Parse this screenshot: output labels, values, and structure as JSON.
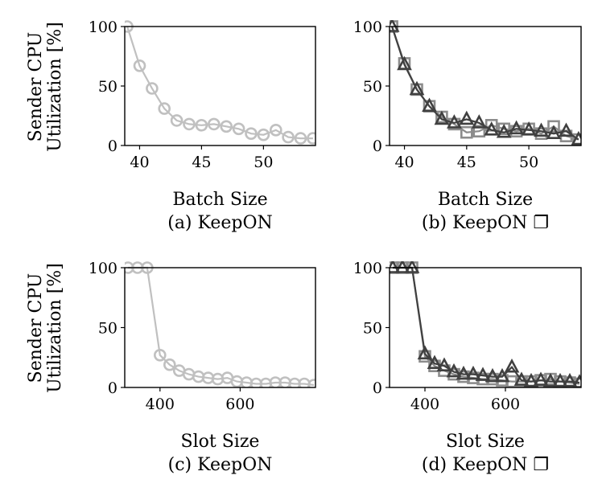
{
  "figure": {
    "ylabel_line1": "Sender CPU",
    "ylabel_line2": "Utilization [%]"
  },
  "colors": {
    "keepon": "#c0c0c0",
    "variant_square": "#8c8c8c",
    "variant_triangle": "#404040"
  },
  "chart_data": [
    {
      "type": "line",
      "caption": "(a) KeepON",
      "xlabel": "Batch Size",
      "ylabel": "Sender CPU Utilization [%]",
      "xlim": [
        38.8,
        54.2
      ],
      "ylim": [
        0,
        100
      ],
      "xticks": [
        40,
        45,
        50
      ],
      "yticks": [
        0,
        50,
        100
      ],
      "series": [
        {
          "marker": "circle",
          "color": "#c0c0c0",
          "x": [
            39,
            40,
            41,
            42,
            43,
            44,
            45,
            46,
            47,
            48,
            49,
            50,
            51,
            52,
            53,
            54
          ],
          "y": [
            100,
            67,
            48,
            31,
            21,
            18,
            17,
            18,
            16,
            14,
            10,
            9,
            13,
            7,
            6,
            6
          ]
        }
      ]
    },
    {
      "type": "line",
      "caption": "(b) KeepON ❐",
      "xlabel": "Batch Size",
      "ylabel": "Sender CPU Utilization [%]",
      "xlim": [
        38.8,
        54.2
      ],
      "ylim": [
        0,
        100
      ],
      "xticks": [
        40,
        45,
        50
      ],
      "yticks": [
        0,
        50,
        100
      ],
      "series": [
        {
          "marker": "square",
          "color": "#8c8c8c",
          "x": [
            39,
            40,
            41,
            42,
            43,
            44,
            45,
            46,
            47,
            48,
            49,
            50,
            51,
            52,
            53,
            54
          ],
          "y": [
            100,
            69,
            47,
            33,
            24,
            18,
            11,
            12,
            17,
            14,
            12,
            14,
            10,
            16,
            8,
            5
          ]
        },
        {
          "marker": "triangle",
          "color": "#404040",
          "x": [
            39,
            40,
            41,
            42,
            43,
            44,
            45,
            46,
            47,
            48,
            49,
            50,
            51,
            52,
            53,
            54
          ],
          "y": [
            100,
            68,
            47,
            33,
            22,
            19,
            22,
            19,
            13,
            11,
            14,
            13,
            12,
            10,
            12,
            5
          ]
        }
      ]
    },
    {
      "type": "line",
      "caption": "(c) KeepON",
      "xlabel": "Slot Size",
      "ylabel": "Sender CPU Utilization [%]",
      "xlim": [
        312,
        788
      ],
      "ylim": [
        0,
        100
      ],
      "xticks": [
        400,
        600
      ],
      "yticks": [
        0,
        50,
        100
      ],
      "series": [
        {
          "marker": "circle",
          "color": "#c0c0c0",
          "x": [
            320,
            344,
            368,
            400,
            424,
            448,
            472,
            496,
            520,
            544,
            568,
            592,
            616,
            640,
            664,
            688,
            712,
            736,
            760,
            784
          ],
          "y": [
            100,
            100,
            100,
            27,
            19,
            14,
            11,
            9,
            8,
            7,
            8,
            5,
            4,
            3,
            3,
            4,
            4,
            3,
            3,
            2
          ]
        }
      ]
    },
    {
      "type": "line",
      "caption": "(d) KeepON ❐",
      "xlabel": "Slot Size",
      "ylabel": "Sender CPU Utilization [%]",
      "xlim": [
        312,
        788
      ],
      "ylim": [
        0,
        100
      ],
      "xticks": [
        400,
        600
      ],
      "yticks": [
        0,
        50,
        100
      ],
      "series": [
        {
          "marker": "square",
          "color": "#8c8c8c",
          "x": [
            320,
            344,
            368,
            400,
            424,
            448,
            472,
            496,
            520,
            544,
            568,
            592,
            616,
            640,
            664,
            688,
            712,
            736,
            760,
            784
          ],
          "y": [
            100,
            100,
            100,
            26,
            18,
            14,
            11,
            9,
            8,
            7,
            7,
            6,
            5,
            5,
            5,
            6,
            7,
            5,
            4,
            3
          ]
        },
        {
          "marker": "triangle",
          "color": "#404040",
          "x": [
            320,
            344,
            368,
            400,
            424,
            448,
            472,
            496,
            520,
            544,
            568,
            592,
            616,
            640,
            664,
            688,
            712,
            736,
            760,
            784
          ],
          "y": [
            100,
            100,
            100,
            28,
            20,
            18,
            13,
            11,
            11,
            10,
            9,
            9,
            17,
            6,
            5,
            6,
            5,
            5,
            5,
            4
          ]
        }
      ]
    }
  ]
}
